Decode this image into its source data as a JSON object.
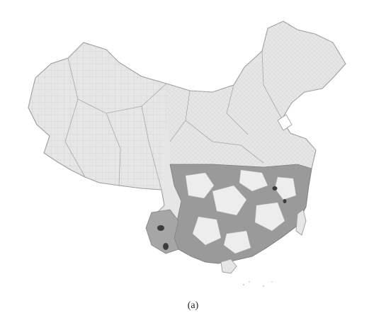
{
  "figure": {
    "caption": "(a)"
  },
  "legend_colors": {
    "background_region": "#e6e6e6",
    "border_line": "#b0b0b0",
    "light_highlight": "#ededed",
    "medium_highlight": "#9a9a9a",
    "dark_highlight": "#3c3c3c"
  }
}
